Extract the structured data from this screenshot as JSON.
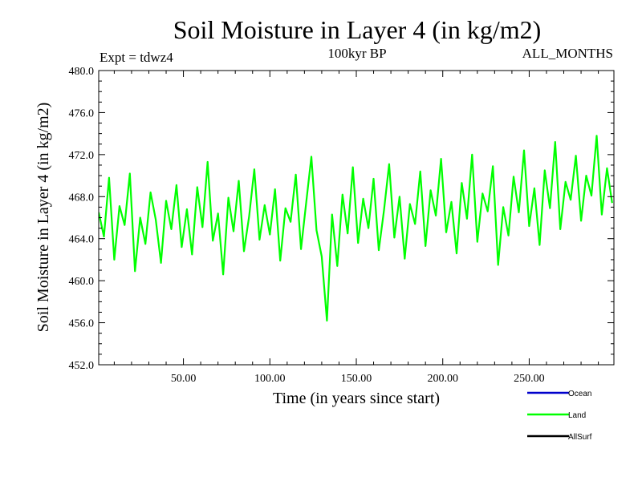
{
  "chart_data": {
    "type": "line",
    "title": "Soil Moisture in Layer 4 (in kg/m2)",
    "subtitle_left": "Expt = tdwz4",
    "subtitle_center": "100kyr BP",
    "subtitle_right": "ALL_MONTHS",
    "xlabel": "Time (in years since start)",
    "ylabel": "Soil Moisture in Layer 4 (in kg/m2)",
    "xlim": [
      1,
      299
    ],
    "ylim": [
      452.0,
      480.0
    ],
    "x_ticks": [
      50,
      100,
      150,
      200,
      250
    ],
    "x_tick_labels": [
      "50.00",
      "100.00",
      "150.00",
      "200.00",
      "250.00"
    ],
    "y_ticks": [
      452,
      456,
      460,
      464,
      468,
      472,
      476,
      480
    ],
    "y_tick_labels": [
      "452.0",
      "456.0",
      "460.0",
      "464.0",
      "468.0",
      "472.0",
      "476.0",
      "480.0"
    ],
    "grid": false,
    "legend_position": "bottom-right",
    "legend": [
      {
        "name": "Ocean",
        "color": "#0000cc"
      },
      {
        "name": "Land",
        "color": "#00ff00"
      },
      {
        "name": "AllSurf",
        "color": "#000000"
      }
    ],
    "series": [
      {
        "name": "Land",
        "color": "#00ff00",
        "x": [
          1,
          4,
          7,
          10,
          13,
          16,
          19,
          22,
          25,
          28,
          31,
          34,
          37,
          40,
          43,
          46,
          49,
          52,
          55,
          58,
          61,
          64,
          67,
          70,
          73,
          76,
          79,
          82,
          85,
          88,
          91,
          94,
          97,
          100,
          103,
          106,
          109,
          112,
          115,
          118,
          121,
          124,
          127,
          130,
          133,
          136,
          139,
          142,
          145,
          148,
          151,
          154,
          157,
          160,
          163,
          166,
          169,
          172,
          175,
          178,
          181,
          184,
          187,
          190,
          193,
          196,
          199,
          202,
          205,
          208,
          211,
          214,
          217,
          220,
          223,
          226,
          229,
          232,
          235,
          238,
          241,
          244,
          247,
          250,
          253,
          256,
          259,
          262,
          265,
          268,
          271,
          274,
          277,
          280,
          283,
          286,
          289,
          292,
          295,
          298
        ],
        "y": [
          466.5,
          464.2,
          469.8,
          462.0,
          467.1,
          465.3,
          470.2,
          460.9,
          466.0,
          463.5,
          468.4,
          465.8,
          461.7,
          467.6,
          464.9,
          469.1,
          463.2,
          466.8,
          462.5,
          468.9,
          465.1,
          471.3,
          463.8,
          466.4,
          460.6,
          467.9,
          464.7,
          469.5,
          462.8,
          466.1,
          470.6,
          463.9,
          467.2,
          464.4,
          468.7,
          461.9,
          466.9,
          465.6,
          470.1,
          463.0,
          467.4,
          471.8,
          464.8,
          462.3,
          456.2,
          466.3,
          461.4,
          468.2,
          464.5,
          470.8,
          463.6,
          467.8,
          465.0,
          469.7,
          462.9,
          466.7,
          471.1,
          464.1,
          468.0,
          462.1,
          467.3,
          465.4,
          470.4,
          463.3,
          468.6,
          466.2,
          471.6,
          464.6,
          467.5,
          462.6,
          469.3,
          465.9,
          472.0,
          463.7,
          468.3,
          466.6,
          470.9,
          461.5,
          467.0,
          464.3,
          469.9,
          466.5,
          472.4,
          465.2,
          468.8,
          463.4,
          470.5,
          466.9,
          473.2,
          464.9,
          469.4,
          467.7,
          471.9,
          465.7,
          470.0,
          468.1,
          473.8,
          466.3,
          470.7,
          467.4
        ]
      }
    ]
  }
}
